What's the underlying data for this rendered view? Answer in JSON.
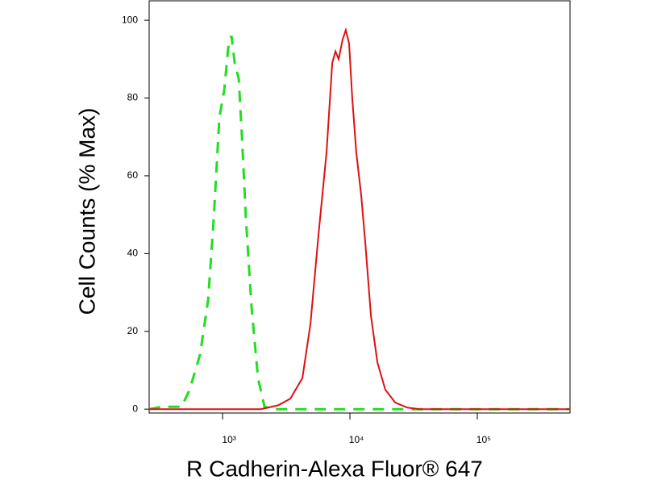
{
  "chart_data": {
    "type": "line",
    "xlabel": "R Cadherin-Alexa Fluor® 647",
    "ylabel": "Cell Counts (% Max)",
    "xscale": "log",
    "xlim": [
      265,
      535000
    ],
    "ylim": [
      -1,
      105
    ],
    "xticks": [
      {
        "value": 1000,
        "label": "10³"
      },
      {
        "value": 10000,
        "label": "10⁴"
      },
      {
        "value": 100000,
        "label": "10⁵"
      }
    ],
    "yticks": [
      0,
      20,
      40,
      60,
      80,
      100
    ],
    "grid": false,
    "series": [
      {
        "color": "#22dd22",
        "dash": true,
        "x": [
          265,
          330,
          476,
          551,
          665,
          769,
          852,
          944,
          1029,
          1107,
          1174,
          1244,
          1339,
          1419,
          1525,
          1690,
          1898,
          2134,
          2541,
          5000,
          50000,
          535000
        ],
        "values": [
          0,
          0.6,
          0.6,
          5,
          14,
          28,
          49,
          75,
          82,
          93,
          96,
          89,
          85,
          70,
          49,
          26,
          8,
          0.6,
          0,
          0,
          0,
          0
        ]
      },
      {
        "color": "#dd1111",
        "dash": false,
        "x": [
          265,
          2000,
          2735,
          3403,
          4233,
          4898,
          5666,
          6553,
          7260,
          7700,
          8150,
          8754,
          9286,
          9855,
          10430,
          11220,
          12260,
          13190,
          14630,
          16430,
          18970,
          22670,
          28240,
          35050,
          100000,
          535000
        ],
        "values": [
          0,
          0,
          1,
          2.7,
          8,
          22,
          45,
          66,
          89,
          92,
          90,
          95,
          97.5,
          94,
          80,
          66,
          55,
          43,
          24,
          12,
          5,
          1.7,
          0.4,
          0,
          0,
          0
        ]
      }
    ]
  }
}
